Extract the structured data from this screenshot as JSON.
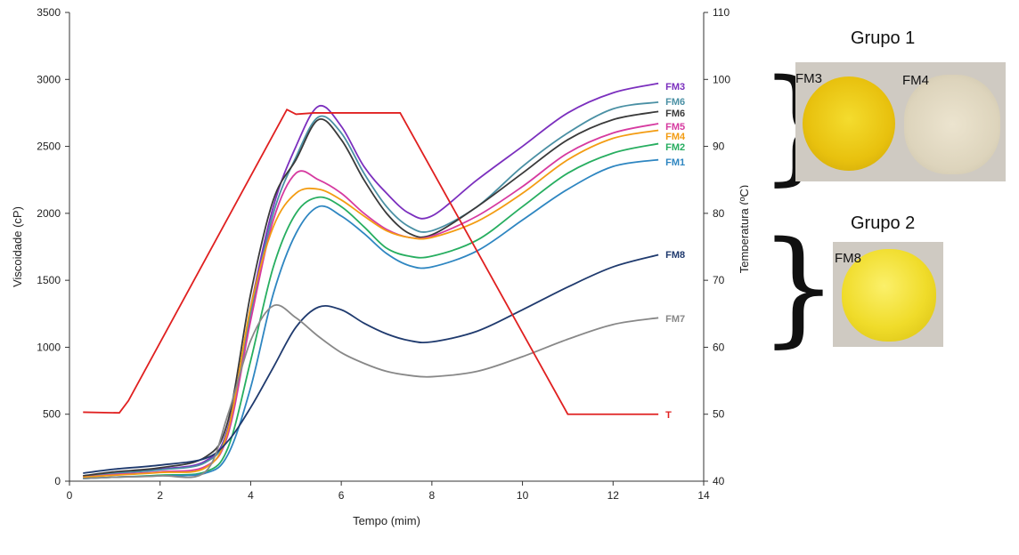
{
  "chart_data": {
    "type": "line",
    "xlabel": "Tempo (mim)",
    "ylabel": "Viscoidade (cP)",
    "y2label": "Temperatura (ºC)",
    "xlim": [
      0,
      14
    ],
    "ylim": [
      0,
      3500
    ],
    "y2lim": [
      40,
      110
    ],
    "xticks": [
      0,
      2,
      4,
      6,
      8,
      10,
      12,
      14
    ],
    "yticks": [
      0,
      500,
      1000,
      1500,
      2000,
      2500,
      3000,
      3500
    ],
    "y2ticks": [
      40,
      50,
      60,
      70,
      80,
      90,
      100,
      110
    ],
    "grid": false,
    "series": [
      {
        "name": "FM3",
        "color": "#7b2fbe",
        "axis": "left",
        "points": [
          [
            0.3,
            40
          ],
          [
            1,
            60
          ],
          [
            2,
            90
          ],
          [
            3,
            150
          ],
          [
            3.5,
            400
          ],
          [
            4,
            1300
          ],
          [
            4.5,
            2050
          ],
          [
            5,
            2500
          ],
          [
            5.5,
            2800
          ],
          [
            6,
            2650
          ],
          [
            6.5,
            2350
          ],
          [
            7,
            2150
          ],
          [
            7.5,
            2000
          ],
          [
            8,
            1980
          ],
          [
            9,
            2250
          ],
          [
            10,
            2500
          ],
          [
            11,
            2750
          ],
          [
            12,
            2900
          ],
          [
            13,
            2970
          ]
        ]
      },
      {
        "name": "FM6",
        "color": "#4a90a4",
        "axis": "left",
        "points": [
          [
            0.3,
            40
          ],
          [
            1,
            60
          ],
          [
            2,
            85
          ],
          [
            3,
            140
          ],
          [
            3.5,
            380
          ],
          [
            4,
            1250
          ],
          [
            4.5,
            2000
          ],
          [
            5,
            2420
          ],
          [
            5.5,
            2720
          ],
          [
            6,
            2600
          ],
          [
            6.5,
            2300
          ],
          [
            7,
            2050
          ],
          [
            7.5,
            1900
          ],
          [
            8,
            1870
          ],
          [
            9,
            2050
          ],
          [
            10,
            2350
          ],
          [
            11,
            2600
          ],
          [
            12,
            2780
          ],
          [
            13,
            2830
          ]
        ]
      },
      {
        "name": "FM6",
        "color": "#3a3a3a",
        "axis": "left",
        "points": [
          [
            0.3,
            40
          ],
          [
            1,
            70
          ],
          [
            2,
            100
          ],
          [
            3,
            180
          ],
          [
            3.5,
            450
          ],
          [
            4,
            1400
          ],
          [
            4.5,
            2100
          ],
          [
            5,
            2400
          ],
          [
            5.5,
            2700
          ],
          [
            6,
            2550
          ],
          [
            6.5,
            2250
          ],
          [
            7,
            2000
          ],
          [
            7.5,
            1850
          ],
          [
            8,
            1840
          ],
          [
            9,
            2050
          ],
          [
            10,
            2300
          ],
          [
            11,
            2550
          ],
          [
            12,
            2700
          ],
          [
            13,
            2760
          ]
        ]
      },
      {
        "name": "FM5",
        "color": "#d63aa0",
        "axis": "left",
        "points": [
          [
            0.3,
            30
          ],
          [
            1,
            50
          ],
          [
            2,
            70
          ],
          [
            3,
            110
          ],
          [
            3.5,
            350
          ],
          [
            4,
            1200
          ],
          [
            4.5,
            1950
          ],
          [
            5,
            2300
          ],
          [
            5.5,
            2250
          ],
          [
            6,
            2150
          ],
          [
            6.5,
            2000
          ],
          [
            7,
            1880
          ],
          [
            7.5,
            1820
          ],
          [
            8,
            1830
          ],
          [
            9,
            1980
          ],
          [
            10,
            2200
          ],
          [
            11,
            2450
          ],
          [
            12,
            2600
          ],
          [
            13,
            2670
          ]
        ]
      },
      {
        "name": "FM4",
        "color": "#f39c12",
        "axis": "left",
        "points": [
          [
            0.3,
            30
          ],
          [
            1,
            45
          ],
          [
            2,
            65
          ],
          [
            3,
            100
          ],
          [
            3.5,
            380
          ],
          [
            4,
            1300
          ],
          [
            4.5,
            1900
          ],
          [
            5,
            2150
          ],
          [
            5.5,
            2180
          ],
          [
            6,
            2100
          ],
          [
            6.5,
            1980
          ],
          [
            7,
            1870
          ],
          [
            7.5,
            1820
          ],
          [
            8,
            1820
          ],
          [
            9,
            1940
          ],
          [
            10,
            2150
          ],
          [
            11,
            2400
          ],
          [
            12,
            2560
          ],
          [
            13,
            2620
          ]
        ]
      },
      {
        "name": "FM2",
        "color": "#27ae60",
        "axis": "left",
        "points": [
          [
            0.3,
            20
          ],
          [
            1,
            30
          ],
          [
            2,
            45
          ],
          [
            3,
            70
          ],
          [
            3.5,
            250
          ],
          [
            4,
            900
          ],
          [
            4.5,
            1600
          ],
          [
            5,
            2000
          ],
          [
            5.5,
            2120
          ],
          [
            6,
            2050
          ],
          [
            6.5,
            1900
          ],
          [
            7,
            1740
          ],
          [
            7.5,
            1680
          ],
          [
            8,
            1680
          ],
          [
            9,
            1800
          ],
          [
            10,
            2050
          ],
          [
            11,
            2300
          ],
          [
            12,
            2450
          ],
          [
            13,
            2520
          ]
        ]
      },
      {
        "name": "FM1",
        "color": "#2e86c1",
        "axis": "left",
        "points": [
          [
            0.3,
            20
          ],
          [
            1,
            30
          ],
          [
            2,
            40
          ],
          [
            3,
            60
          ],
          [
            3.5,
            200
          ],
          [
            4,
            700
          ],
          [
            4.5,
            1400
          ],
          [
            5,
            1850
          ],
          [
            5.5,
            2050
          ],
          [
            6,
            1980
          ],
          [
            6.5,
            1850
          ],
          [
            7,
            1700
          ],
          [
            7.5,
            1610
          ],
          [
            8,
            1600
          ],
          [
            9,
            1720
          ],
          [
            10,
            1950
          ],
          [
            11,
            2180
          ],
          [
            12,
            2350
          ],
          [
            13,
            2400
          ]
        ]
      },
      {
        "name": "FM8",
        "color": "#1f3a6e",
        "axis": "left",
        "points": [
          [
            0.3,
            60
          ],
          [
            1,
            90
          ],
          [
            2,
            120
          ],
          [
            3,
            170
          ],
          [
            3.5,
            300
          ],
          [
            4,
            550
          ],
          [
            4.5,
            850
          ],
          [
            5,
            1150
          ],
          [
            5.5,
            1300
          ],
          [
            6,
            1280
          ],
          [
            6.5,
            1180
          ],
          [
            7,
            1100
          ],
          [
            7.5,
            1050
          ],
          [
            8,
            1040
          ],
          [
            9,
            1120
          ],
          [
            10,
            1280
          ],
          [
            11,
            1450
          ],
          [
            12,
            1600
          ],
          [
            13,
            1690
          ]
        ]
      },
      {
        "name": "FM7",
        "color": "#888888",
        "axis": "left",
        "points": [
          [
            0.3,
            20
          ],
          [
            1,
            30
          ],
          [
            2,
            40
          ],
          [
            3,
            70
          ],
          [
            3.5,
            500
          ],
          [
            4,
            1050
          ],
          [
            4.5,
            1310
          ],
          [
            5,
            1220
          ],
          [
            5.5,
            1080
          ],
          [
            6,
            960
          ],
          [
            6.5,
            880
          ],
          [
            7,
            820
          ],
          [
            7.5,
            790
          ],
          [
            8,
            780
          ],
          [
            9,
            820
          ],
          [
            10,
            930
          ],
          [
            11,
            1060
          ],
          [
            12,
            1170
          ],
          [
            13,
            1220
          ]
        ]
      },
      {
        "name": "T",
        "color": "#e02020",
        "axis": "right",
        "points": [
          [
            0.3,
            50.3
          ],
          [
            1.1,
            50.2
          ],
          [
            1.3,
            52
          ],
          [
            4.8,
            95.5
          ],
          [
            5.0,
            94.8
          ],
          [
            5.4,
            95
          ],
          [
            7.3,
            95
          ],
          [
            11.0,
            50
          ],
          [
            13,
            50
          ]
        ]
      }
    ]
  },
  "groups": [
    {
      "title": "Grupo 1",
      "samples": [
        "FM3",
        "FM4"
      ]
    },
    {
      "title": "Grupo 2",
      "samples": [
        "FM8"
      ]
    }
  ]
}
